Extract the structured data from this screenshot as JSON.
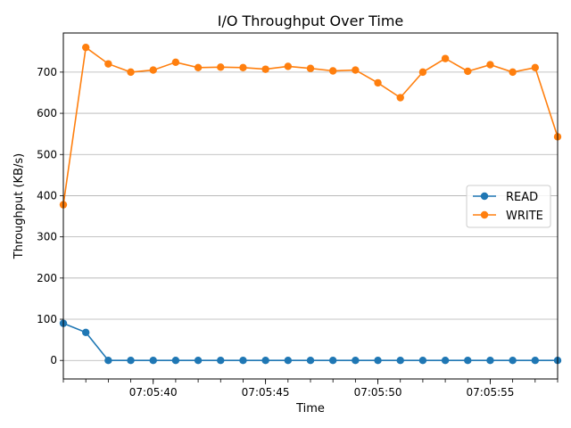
{
  "chart_data": {
    "type": "line",
    "title": "I/O Throughput Over Time",
    "xlabel": "Time",
    "ylabel": "Throughput (KB/s)",
    "x": [
      "07:05:36",
      "07:05:37",
      "07:05:38",
      "07:05:39",
      "07:05:40",
      "07:05:41",
      "07:05:42",
      "07:05:43",
      "07:05:44",
      "07:05:45",
      "07:05:46",
      "07:05:47",
      "07:05:48",
      "07:05:49",
      "07:05:50",
      "07:05:51",
      "07:05:52",
      "07:05:53",
      "07:05:54",
      "07:05:55",
      "07:05:56",
      "07:05:57",
      "07:05:58"
    ],
    "xticks": [
      "07:05:40",
      "07:05:45",
      "07:05:50",
      "07:05:55"
    ],
    "yticks": [
      0,
      100,
      200,
      300,
      400,
      500,
      600,
      700
    ],
    "ylim": [
      -45,
      795
    ],
    "grid": "y",
    "legend_position": "center-right",
    "series": [
      {
        "name": "READ",
        "color": "#1f77b4",
        "values": [
          90,
          68,
          0,
          0,
          0,
          0,
          0,
          0,
          0,
          0,
          0,
          0,
          0,
          0,
          0,
          0,
          0,
          0,
          0,
          0,
          0,
          0,
          0
        ]
      },
      {
        "name": "WRITE",
        "color": "#ff7f0e",
        "values": [
          378,
          760,
          720,
          700,
          705,
          724,
          711,
          712,
          711,
          707,
          714,
          709,
          703,
          705,
          674,
          638,
          700,
          733,
          702,
          718,
          700,
          711,
          543
        ]
      }
    ]
  }
}
